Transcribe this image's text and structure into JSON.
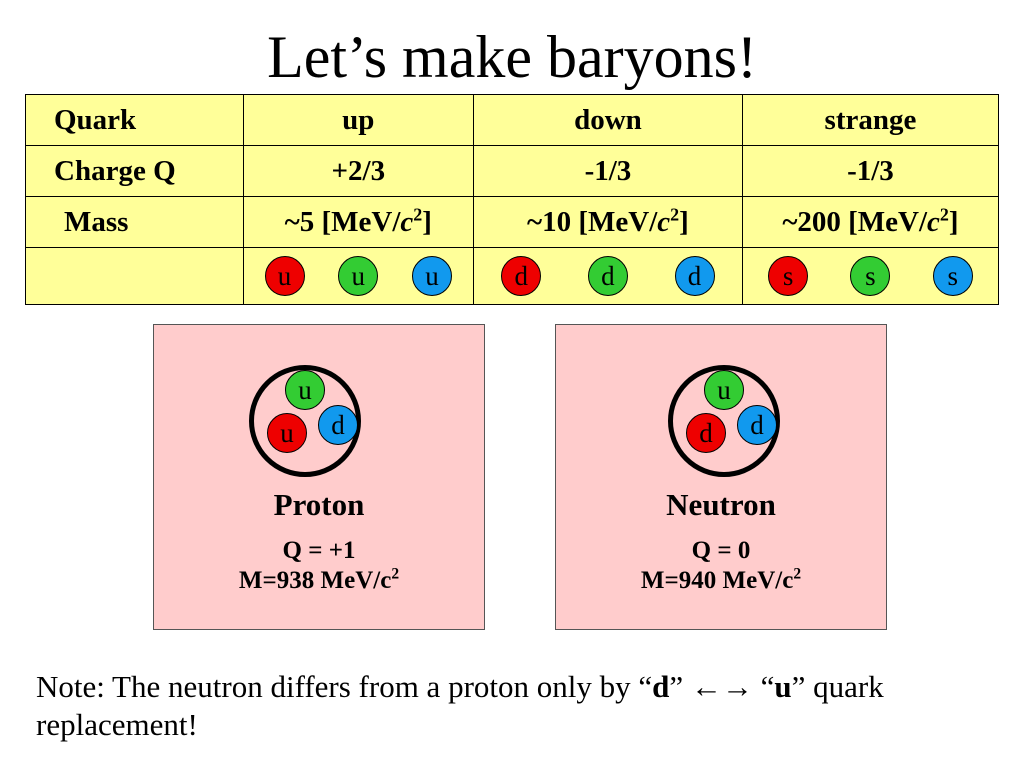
{
  "title": "Let’s make baryons!",
  "table": {
    "rows": [
      {
        "label": "Quark",
        "cells": [
          "up",
          "down",
          "strange"
        ]
      },
      {
        "label": "Charge Q",
        "cells": [
          "+2/3",
          "-1/3",
          "-1/3"
        ]
      }
    ],
    "mass": {
      "label": "Mass",
      "cells": [
        {
          "prefix": "~5 [MeV/",
          "var": "c",
          "exp": "2",
          "suffix": "]"
        },
        {
          "prefix": "~10 [MeV/",
          "var": "c",
          "exp": "2",
          "suffix": "]"
        },
        {
          "prefix": "~200 [MeV/",
          "var": "c",
          "exp": "2",
          "suffix": "]"
        }
      ]
    },
    "quarks": [
      [
        {
          "letter": "u",
          "color": "#ee0000"
        },
        {
          "letter": "u",
          "color": "#33cc33"
        },
        {
          "letter": "u",
          "color": "#1199ee"
        }
      ],
      [
        {
          "letter": "d",
          "color": "#ee0000"
        },
        {
          "letter": "d",
          "color": "#33cc33"
        },
        {
          "letter": "d",
          "color": "#1199ee"
        }
      ],
      [
        {
          "letter": "s",
          "color": "#ee0000"
        },
        {
          "letter": "s",
          "color": "#33cc33"
        },
        {
          "letter": "s",
          "color": "#1199ee"
        }
      ]
    ]
  },
  "proton": {
    "name": "Proton",
    "charge": "Q = +1",
    "mass_prefix": "M=938 MeV/c",
    "mass_exp": "2",
    "quarks": [
      {
        "letter": "u",
        "color": "#33cc33"
      },
      {
        "letter": "u",
        "color": "#ee0000"
      },
      {
        "letter": "d",
        "color": "#1199ee"
      }
    ]
  },
  "neutron": {
    "name": "Neutron",
    "charge": "Q = 0",
    "mass_prefix": "M=940 MeV/c",
    "mass_exp": "2",
    "quarks": [
      {
        "letter": "u",
        "color": "#33cc33"
      },
      {
        "letter": "d",
        "color": "#ee0000"
      },
      {
        "letter": "d",
        "color": "#1199ee"
      }
    ]
  },
  "note": {
    "part1": "Note: The neutron differs from a proton only by “",
    "bold1": "d",
    "part2": "” ",
    "arrows": "←→",
    "part3": " “",
    "bold2": "u",
    "part4": "” quark replacement!"
  }
}
